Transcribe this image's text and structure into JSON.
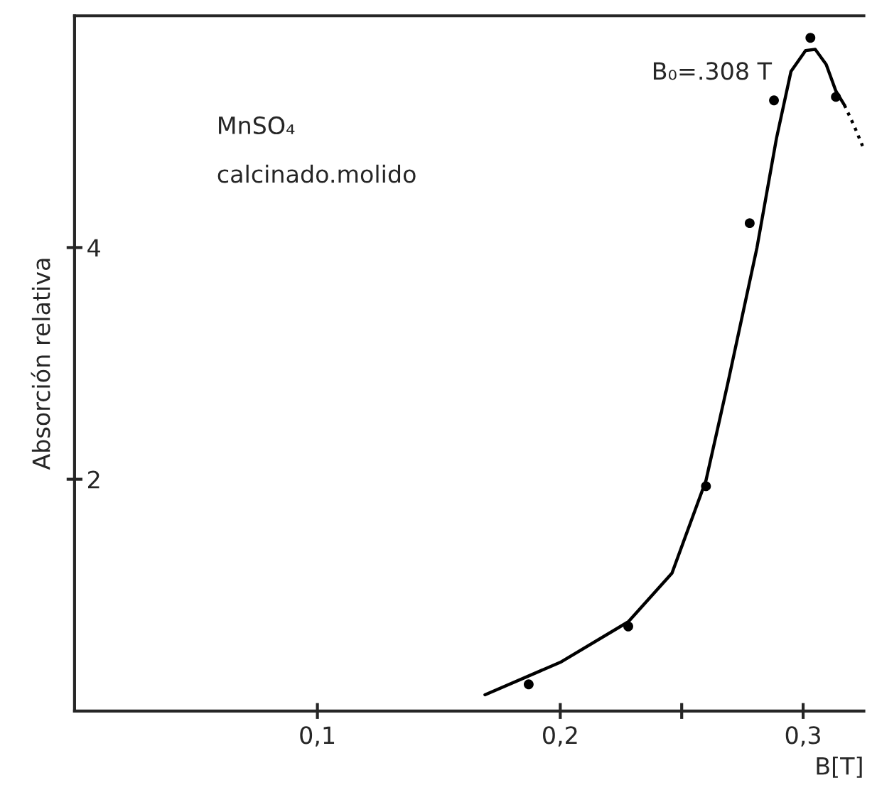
{
  "chart_data": {
    "type": "scatter",
    "xlabel": "B[T]",
    "ylabel": "Absorción relativa",
    "xlim": [
      0,
      0.325
    ],
    "ylim": [
      0,
      6
    ],
    "xticks": [
      {
        "value": 0.1,
        "label": "0,1"
      },
      {
        "value": 0.2,
        "label": "0,2"
      },
      {
        "value": 0.25,
        "label": null
      },
      {
        "value": 0.3,
        "label": "0,3"
      }
    ],
    "yticks": [
      2,
      4
    ],
    "grid": false,
    "legend": false,
    "annotations": [
      "MnSO₄",
      "calcinado.molido",
      {
        "text": "B₀=.308 T",
        "x": 0.305,
        "y": 5.71
      }
    ],
    "series": [
      {
        "color": "#000000",
        "marker": "circle",
        "x": [
          0.187,
          0.228,
          0.26,
          0.278,
          0.288,
          0.303,
          0.3135
        ],
        "values": [
          0.23,
          0.73,
          1.94,
          4.21,
          5.27,
          5.81,
          5.3
        ]
      },
      {
        "type": "line",
        "color": "#000000",
        "marker": "none",
        "line_style": "solid",
        "x": [
          0.169,
          0.2,
          0.228,
          0.246,
          0.26,
          0.269,
          0.281,
          0.289,
          0.295,
          0.301,
          0.305,
          0.3095,
          0.3135,
          0.317
        ],
        "values": [
          0.14,
          0.42,
          0.77,
          1.19,
          1.99,
          2.83,
          4.0,
          4.94,
          5.52,
          5.7,
          5.71,
          5.58,
          5.35,
          5.23
        ]
      },
      {
        "type": "line",
        "color": "#000000",
        "marker": "none",
        "line_style": "dotted",
        "x": [
          0.317,
          0.321,
          0.325
        ],
        "values": [
          5.23,
          5.05,
          4.85
        ]
      }
    ]
  }
}
